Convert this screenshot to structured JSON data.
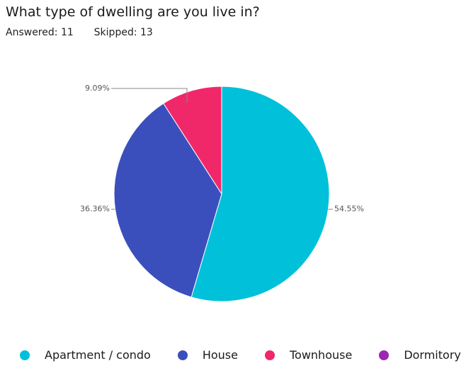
{
  "question": {
    "title": "What type of dwelling are you live in?",
    "answered_label": "Answered:",
    "answered_count": "11",
    "skipped_label": "Skipped:",
    "skipped_count": "13"
  },
  "chart_data": {
    "type": "pie",
    "title": "What type of dwelling are you live in?",
    "categories": [
      "Apartment / condo",
      "House",
      "Townhouse",
      "Dormitory"
    ],
    "values": [
      54.55,
      36.36,
      9.09,
      0
    ],
    "labels": [
      "54.55%",
      "36.36%",
      "9.09%",
      ""
    ],
    "colors": [
      "#00c0da",
      "#3b4fbc",
      "#f0286a",
      "#9c27b0"
    ],
    "legend_position": "bottom"
  }
}
